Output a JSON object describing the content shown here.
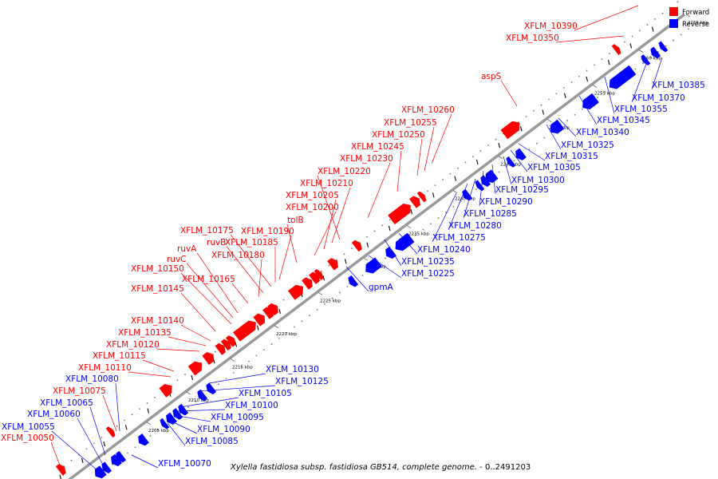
{
  "caption": {
    "organism": "Xylella fastidiosa subsp. fastidiosa GB514, complete genome.",
    "range": " - 0..2491203"
  },
  "legend": [
    {
      "label": "Forward",
      "color": "#ff0000"
    },
    {
      "label": "Reverse",
      "color": "#0000ff"
    }
  ],
  "colors": {
    "forward": "#ff0000",
    "reverse": "#0000ff",
    "backbone": "#999999"
  },
  "ticks": [
    "2205 kbp",
    "2210 kbp",
    "2215 kbp",
    "2220 kbp",
    "2225 kbp",
    "2230 kbp",
    "2235 kbp",
    "2240 kbp",
    "2245 kbp",
    "2250 kbp",
    "2255 kbp",
    "2260 kbp",
    "2265 kbp"
  ],
  "forward_labels": [
    "XFLM_10050",
    "XFLM_10075",
    "XFLM_10110",
    "XFLM_10115",
    "XFLM_10120",
    "XFLM_10135",
    "XFLM_10140",
    "XFLM_10145",
    "XFLM_10150",
    "ruvC",
    "ruvA",
    "XFLM_10165",
    "XFLM_10180",
    "ruvB",
    "XFLM_10175",
    "XFLM_10185",
    "XFLM_10190",
    "tolB",
    "XFLM_10200",
    "XFLM_10205",
    "XFLM_10210",
    "XFLM_10220",
    "XFLM_10230",
    "XFLM_10245",
    "XFLM_10250",
    "XFLM_10255",
    "XFLM_10260",
    "aspS",
    "XFLM_10350",
    "XFLM_10390"
  ],
  "reverse_labels": [
    "XFLM_10055",
    "XFLM_10060",
    "XFLM_10065",
    "XFLM_10080",
    "XFLM_10070",
    "XFLM_10085",
    "XFLM_10090",
    "XFLM_10095",
    "XFLM_10100",
    "XFLM_10105",
    "XFLM_10125",
    "XFLM_10130",
    "gpmA",
    "XFLM_10225",
    "XFLM_10235",
    "XFLM_10240",
    "XFLM_10275",
    "XFLM_10280",
    "XFLM_10285",
    "XFLM_10290",
    "XFLM_10295",
    "XFLM_10300",
    "XFLM_10305",
    "XFLM_10315",
    "XFLM_10325",
    "XFLM_10340",
    "XFLM_10345",
    "XFLM_10355",
    "XFLM_10370",
    "XFLM_10385"
  ]
}
